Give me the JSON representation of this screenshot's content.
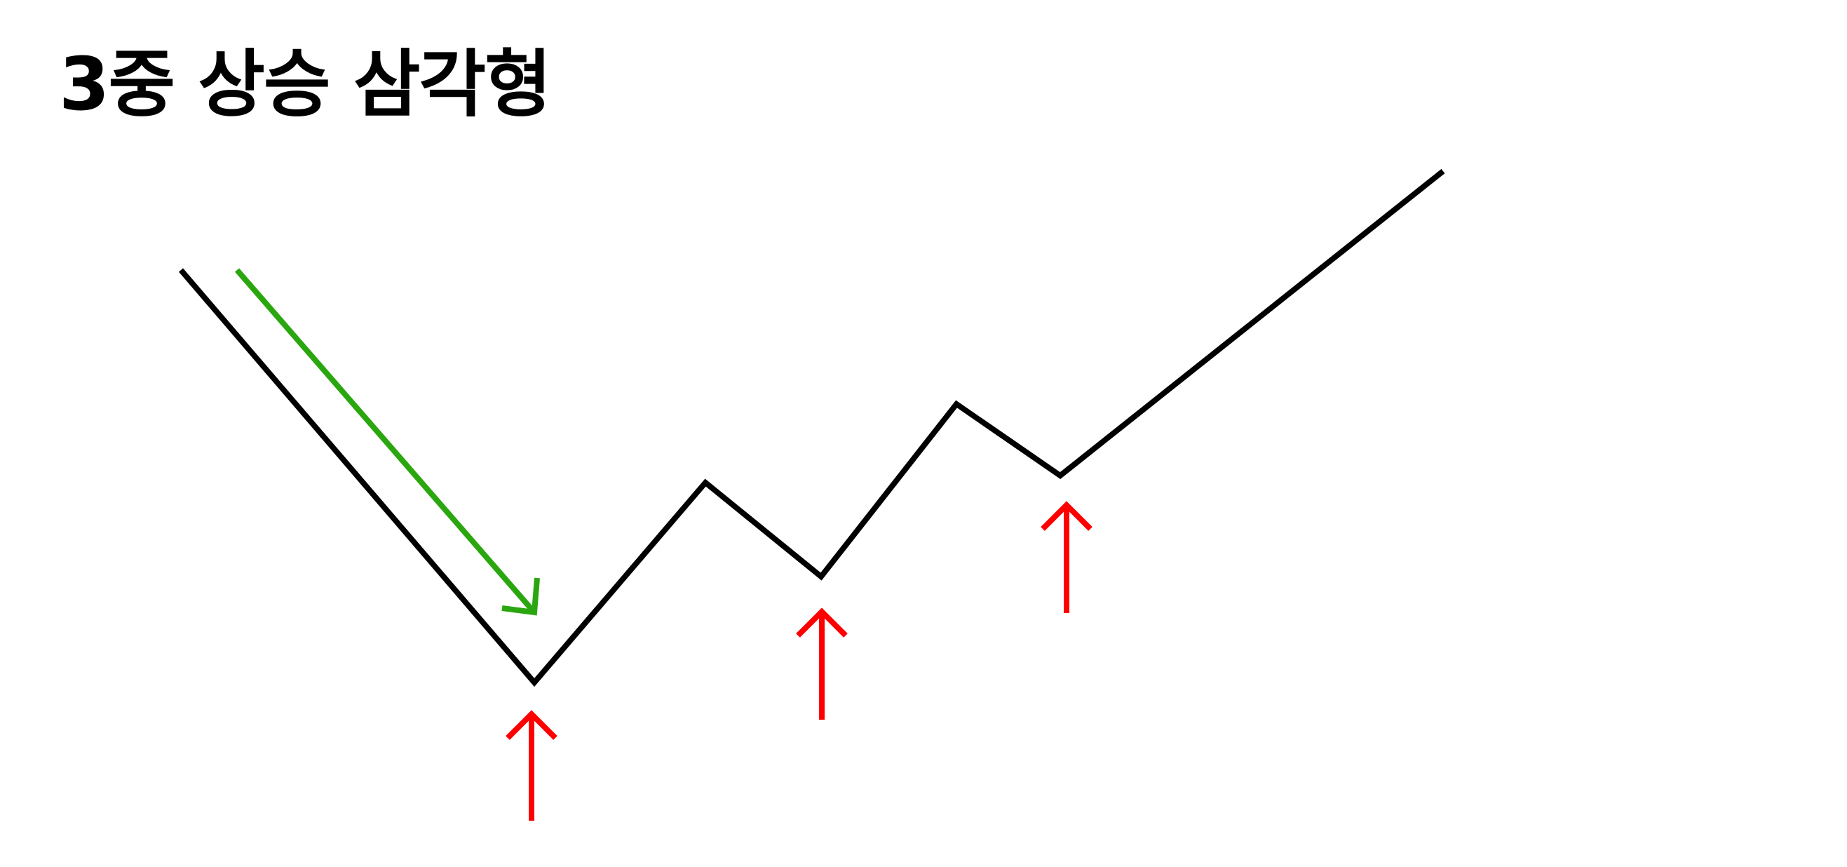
{
  "title": "3중 상승 삼각형",
  "diagram": {
    "price_path": {
      "color": "#000000",
      "segments": [
        "down",
        "up",
        "down",
        "up",
        "down",
        "up"
      ]
    },
    "trend_arrow": {
      "color": "#2aa70f",
      "direction": "down-right"
    },
    "support_arrows": {
      "color": "#ff0000",
      "direction": "up",
      "count": 3
    }
  }
}
